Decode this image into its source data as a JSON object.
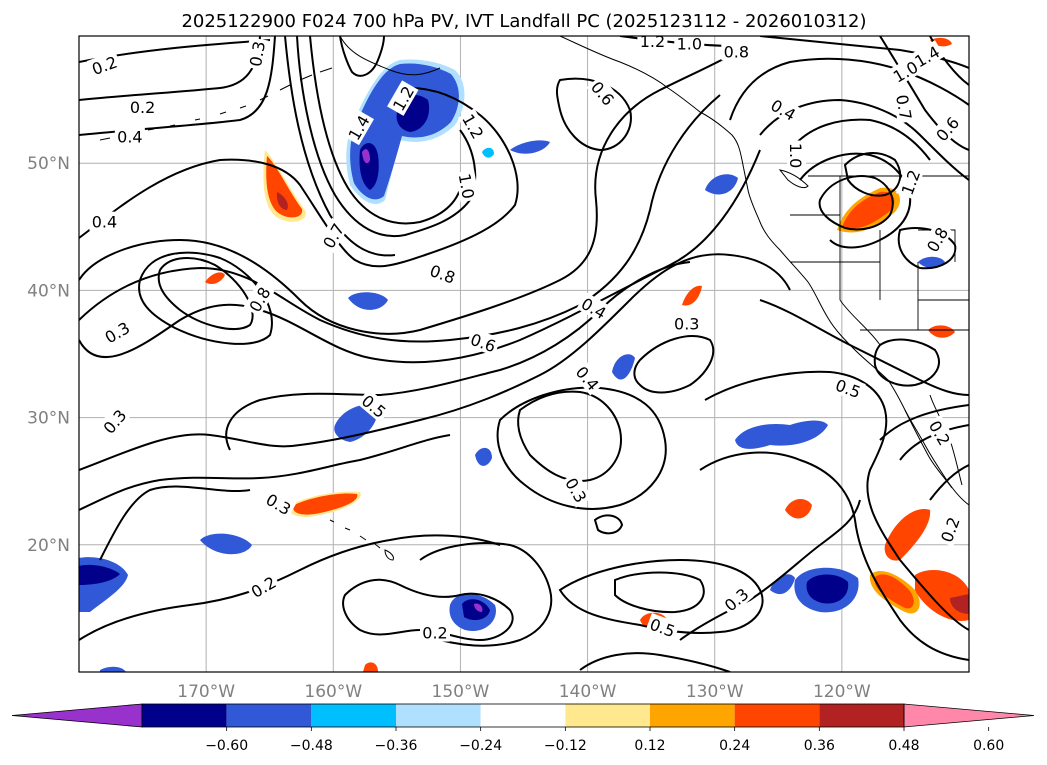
{
  "figure": {
    "title": "2025122900 F024 700 hPa PV, IVT Landfall PC (2025123112 - 2026010312)"
  },
  "map": {
    "lon_range": [
      -180,
      -110
    ],
    "lat_range": [
      10,
      60
    ],
    "lat_ticks": [
      {
        "value": 20,
        "label": "20°N"
      },
      {
        "value": 30,
        "label": "30°N"
      },
      {
        "value": 40,
        "label": "40°N"
      },
      {
        "value": 50,
        "label": "50°N"
      }
    ],
    "lon_ticks": [
      {
        "value": -170,
        "label": "170°W"
      },
      {
        "value": -160,
        "label": "160°W"
      },
      {
        "value": -150,
        "label": "150°W"
      },
      {
        "value": -140,
        "label": "140°W"
      },
      {
        "value": -130,
        "label": "130°W"
      },
      {
        "value": -120,
        "label": "120°W"
      }
    ],
    "contour_labels": [
      {
        "text": "0.2",
        "lon": -178,
        "lat": 57.7,
        "rot": -20
      },
      {
        "text": "0.2",
        "lon": -175,
        "lat": 54.4,
        "rot": 0
      },
      {
        "text": "0.3",
        "lon": -166,
        "lat": 58.6,
        "rot": -80
      },
      {
        "text": "0.4",
        "lon": -176,
        "lat": 52.1,
        "rot": 0
      },
      {
        "text": "0.4",
        "lon": -178,
        "lat": 45.4,
        "rot": 0
      },
      {
        "text": "1.4",
        "lon": -158,
        "lat": 52.8,
        "rot": -60
      },
      {
        "text": "1.2",
        "lon": -154.5,
        "lat": 55.1,
        "rot": -60
      },
      {
        "text": "1.2",
        "lon": -149,
        "lat": 52.9,
        "rot": 60
      },
      {
        "text": "1.0",
        "lon": -149.5,
        "lat": 48.2,
        "rot": 80
      },
      {
        "text": "0.7",
        "lon": -160,
        "lat": 44.3,
        "rot": -60
      },
      {
        "text": "0.8",
        "lon": -165.8,
        "lat": 39.3,
        "rot": -60
      },
      {
        "text": "0.8",
        "lon": -151.4,
        "lat": 41.3,
        "rot": 20
      },
      {
        "text": "0.3",
        "lon": -177,
        "lat": 36.7,
        "rot": -30
      },
      {
        "text": "0.6",
        "lon": -148.2,
        "lat": 35.9,
        "rot": 20
      },
      {
        "text": "0.4",
        "lon": -139.5,
        "lat": 38.6,
        "rot": 30
      },
      {
        "text": "0.4",
        "lon": -140,
        "lat": 33.1,
        "rot": 50
      },
      {
        "text": "0.3",
        "lon": -132.2,
        "lat": 37.4,
        "rot": 0
      },
      {
        "text": "0.5",
        "lon": -156.8,
        "lat": 30.9,
        "rot": 40
      },
      {
        "text": "0.3",
        "lon": -177.2,
        "lat": 29.7,
        "rot": -50
      },
      {
        "text": "0.3",
        "lon": -164.3,
        "lat": 23.2,
        "rot": 30
      },
      {
        "text": "0.3",
        "lon": -140.9,
        "lat": 24.3,
        "rot": 60
      },
      {
        "text": "0.2",
        "lon": -165.5,
        "lat": 16.7,
        "rot": -30
      },
      {
        "text": "0.2",
        "lon": -152,
        "lat": 13.1,
        "rot": 0
      },
      {
        "text": "0.5",
        "lon": -134.1,
        "lat": 13.5,
        "rot": 20
      },
      {
        "text": "0.3",
        "lon": -128.3,
        "lat": 15.7,
        "rot": -40
      },
      {
        "text": "0.5",
        "lon": -119.5,
        "lat": 32.3,
        "rot": 20
      },
      {
        "text": "0.2",
        "lon": -112.3,
        "lat": 28.8,
        "rot": 60
      },
      {
        "text": "0.2",
        "lon": -111.5,
        "lat": 21.2,
        "rot": -70
      },
      {
        "text": "1.2",
        "lon": -134.9,
        "lat": 59.6,
        "rot": 0
      },
      {
        "text": "1.0",
        "lon": -132,
        "lat": 59.4,
        "rot": 0
      },
      {
        "text": "0.8",
        "lon": -128.3,
        "lat": 58.8,
        "rot": 0
      },
      {
        "text": "0.6",
        "lon": -138.8,
        "lat": 55.5,
        "rot": 50
      },
      {
        "text": "0.4",
        "lon": -124.6,
        "lat": 54.2,
        "rot": 30
      },
      {
        "text": "1.4",
        "lon": -113.3,
        "lat": 58.4,
        "rot": -30
      },
      {
        "text": "1.0",
        "lon": -115,
        "lat": 57.2,
        "rot": -30
      },
      {
        "text": "0.7",
        "lon": -115.1,
        "lat": 54.4,
        "rot": 80
      },
      {
        "text": "0.6",
        "lon": -111.7,
        "lat": 52.7,
        "rot": -50
      },
      {
        "text": "1.0",
        "lon": -123.6,
        "lat": 50.6,
        "rot": 90
      },
      {
        "text": "1.2",
        "lon": -114.6,
        "lat": 48.5,
        "rot": -70
      },
      {
        "text": "0.8",
        "lon": -112.5,
        "lat": 44,
        "rot": -60
      }
    ]
  },
  "colorbar": {
    "colors": [
      "#9932cc",
      "#00008b",
      "#3158d6",
      "#00bfff",
      "#b0e0ff",
      "#ffffff",
      "#ffe88e",
      "#ffa500",
      "#ff4500",
      "#b22222",
      "#ff88aa"
    ],
    "tick_labels": [
      "−0.60",
      "−0.48",
      "−0.36",
      "−0.24",
      "−0.12",
      "0.12",
      "0.24",
      "0.36",
      "0.48",
      "0.60"
    ]
  },
  "colors": {
    "tick_label": "#808080",
    "gridline": "#b0b0b0",
    "contour": "#000000"
  }
}
